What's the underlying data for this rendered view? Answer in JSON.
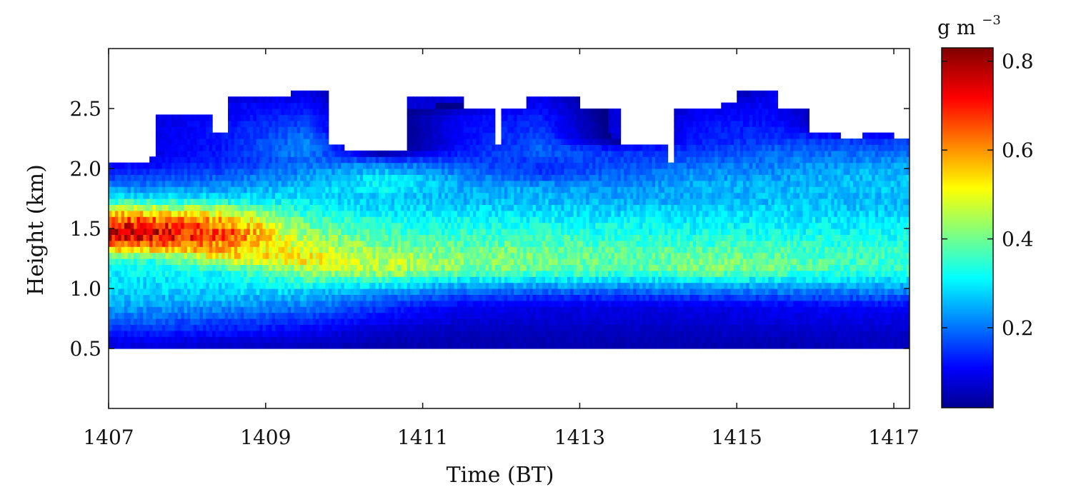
{
  "chart_data": {
    "type": "heatmap",
    "title": "",
    "xlabel": "Time (BT)",
    "ylabel": "Height (km)",
    "xlim": [
      1407,
      1417.2
    ],
    "ylim": [
      0.0,
      3.0
    ],
    "x_ticks": [
      "1407",
      "1409",
      "1411",
      "1413",
      "1415",
      "1417"
    ],
    "y_ticks": [
      "0.5",
      "1.0",
      "1.5",
      "2.0",
      "2.5"
    ],
    "colorbar": {
      "units": "g m",
      "units_exponent": "−3",
      "range": [
        0.02,
        0.83
      ],
      "ticks": [
        "0.2",
        "0.4",
        "0.6",
        "0.8"
      ],
      "colormap": "jet"
    },
    "grid": false,
    "cloud_base_km": 0.5,
    "cloud_top_km": [
      [
        1407.0,
        2.05
      ],
      [
        1407.5,
        2.1
      ],
      [
        1407.6,
        2.45
      ],
      [
        1408.3,
        2.3
      ],
      [
        1408.5,
        2.6
      ],
      [
        1409.3,
        2.65
      ],
      [
        1409.8,
        2.2
      ],
      [
        1410.0,
        2.15
      ],
      [
        1410.7,
        2.15
      ],
      [
        1410.8,
        2.6
      ],
      [
        1411.5,
        2.5
      ],
      [
        1411.9,
        2.2
      ],
      [
        1412.0,
        2.5
      ],
      [
        1412.3,
        2.6
      ],
      [
        1413.0,
        2.5
      ],
      [
        1413.5,
        2.2
      ],
      [
        1414.1,
        2.05
      ],
      [
        1414.2,
        2.5
      ],
      [
        1414.5,
        2.5
      ],
      [
        1414.8,
        2.55
      ],
      [
        1415.0,
        2.65
      ],
      [
        1415.5,
        2.5
      ],
      [
        1415.9,
        2.3
      ],
      [
        1416.3,
        2.25
      ],
      [
        1416.6,
        2.3
      ],
      [
        1417.0,
        2.25
      ],
      [
        1417.2,
        2.25
      ]
    ],
    "lwc_profile": {
      "note_units": "g m-3",
      "layers_km": [
        0.55,
        0.65,
        0.75,
        0.85,
        0.95,
        1.05,
        1.15,
        1.25,
        1.35,
        1.45,
        1.55,
        1.65,
        1.75,
        1.85,
        1.95,
        2.05,
        2.15,
        2.25,
        2.35,
        2.45,
        2.55,
        2.65
      ],
      "times": [
        1407.5,
        1408.5,
        1409.5,
        1410.5,
        1411.5,
        1412.5,
        1413.5,
        1414.5,
        1415.5,
        1416.5
      ],
      "values": [
        [
          0.1,
          0.08,
          0.07,
          0.06,
          0.06,
          0.06,
          0.06,
          0.06,
          0.06,
          0.07
        ],
        [
          0.15,
          0.14,
          0.12,
          0.08,
          0.07,
          0.07,
          0.07,
          0.07,
          0.08,
          0.08
        ],
        [
          0.2,
          0.18,
          0.16,
          0.12,
          0.09,
          0.09,
          0.09,
          0.09,
          0.1,
          0.1
        ],
        [
          0.25,
          0.24,
          0.22,
          0.16,
          0.11,
          0.1,
          0.1,
          0.1,
          0.11,
          0.12
        ],
        [
          0.28,
          0.28,
          0.27,
          0.22,
          0.18,
          0.17,
          0.17,
          0.18,
          0.19,
          0.2
        ],
        [
          0.3,
          0.31,
          0.35,
          0.33,
          0.28,
          0.28,
          0.27,
          0.29,
          0.28,
          0.28
        ],
        [
          0.32,
          0.34,
          0.45,
          0.46,
          0.42,
          0.4,
          0.38,
          0.42,
          0.4,
          0.36
        ],
        [
          0.36,
          0.52,
          0.55,
          0.47,
          0.44,
          0.42,
          0.4,
          0.42,
          0.4,
          0.38
        ],
        [
          0.62,
          0.6,
          0.48,
          0.42,
          0.4,
          0.4,
          0.38,
          0.38,
          0.38,
          0.36
        ],
        [
          0.78,
          0.68,
          0.44,
          0.38,
          0.36,
          0.36,
          0.35,
          0.34,
          0.34,
          0.33
        ],
        [
          0.7,
          0.62,
          0.4,
          0.34,
          0.34,
          0.33,
          0.32,
          0.32,
          0.32,
          0.31
        ],
        [
          0.52,
          0.48,
          0.34,
          0.3,
          0.3,
          0.3,
          0.29,
          0.29,
          0.29,
          0.28
        ],
        [
          0.32,
          0.3,
          0.3,
          0.27,
          0.26,
          0.27,
          0.25,
          0.26,
          0.27,
          0.27
        ],
        [
          0.22,
          0.24,
          0.28,
          0.33,
          0.26,
          0.25,
          0.24,
          0.26,
          0.27,
          0.28
        ],
        [
          0.16,
          0.19,
          0.24,
          0.3,
          0.23,
          0.16,
          0.2,
          0.24,
          0.24,
          0.27
        ],
        [
          0.12,
          0.15,
          0.2,
          0.22,
          0.18,
          0.16,
          0.18,
          0.2,
          0.22,
          0.24
        ],
        [
          0.1,
          0.14,
          0.24,
          0.0,
          0.14,
          0.2,
          0.16,
          0.16,
          0.2,
          0.2
        ],
        [
          0.1,
          0.14,
          0.22,
          0.0,
          0.12,
          0.18,
          0.0,
          0.14,
          0.16,
          0.16
        ],
        [
          0.1,
          0.14,
          0.18,
          0.0,
          0.12,
          0.16,
          0.0,
          0.14,
          0.14,
          0.0
        ],
        [
          0.1,
          0.12,
          0.15,
          0.0,
          0.12,
          0.14,
          0.0,
          0.12,
          0.12,
          0.0
        ],
        [
          0.0,
          0.12,
          0.12,
          0.0,
          0.0,
          0.12,
          0.0,
          0.1,
          0.12,
          0.0
        ],
        [
          0.0,
          0.0,
          0.1,
          0.0,
          0.0,
          0.1,
          0.0,
          0.0,
          0.1,
          0.0
        ]
      ]
    }
  }
}
